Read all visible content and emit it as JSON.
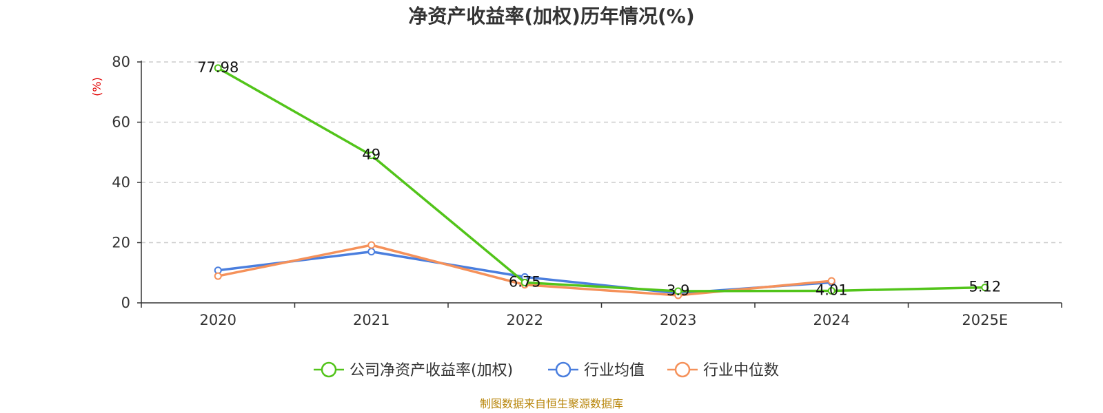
{
  "chart_data": {
    "type": "line",
    "title": "净资产收益率(加权)历年情况(%)",
    "ylabel": "(%)",
    "ylim": [
      0,
      80
    ],
    "yticks": [
      0,
      20,
      40,
      60,
      80
    ],
    "categories": [
      "2020",
      "2021",
      "2022",
      "2023",
      "2024",
      "2025E"
    ],
    "series": [
      {
        "name": "公司净资产收益率(加权)",
        "color": "#52c41a",
        "values": [
          77.98,
          49,
          6.75,
          3.9,
          4.01,
          5.12
        ],
        "labels": [
          "77.98",
          "49",
          "6.75",
          "3.9",
          "4.01",
          "5.12"
        ]
      },
      {
        "name": "行业均值",
        "color": "#4a7ede",
        "values": [
          10.8,
          17.0,
          8.6,
          3.2,
          6.8,
          null
        ],
        "labels": null
      },
      {
        "name": "行业中位数",
        "color": "#f5915a",
        "values": [
          8.9,
          19.2,
          6.0,
          2.5,
          7.3,
          null
        ],
        "labels": null
      }
    ],
    "source": "制图数据来自恒生聚源数据库",
    "grid": true,
    "legend": "bottom"
  }
}
